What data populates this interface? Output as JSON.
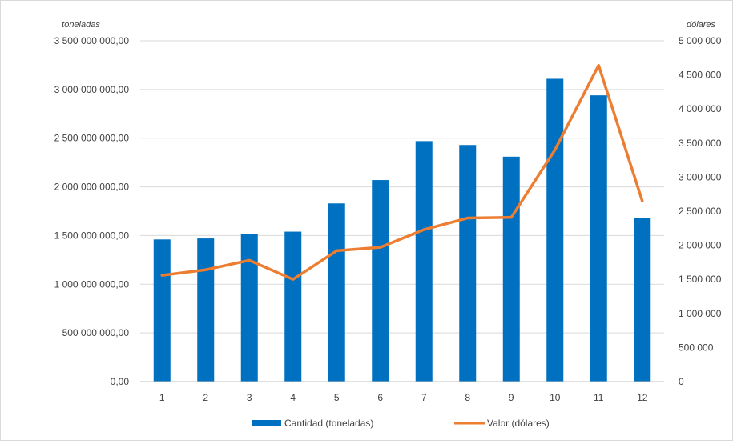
{
  "chart_data": {
    "type": "bar",
    "categories": [
      "1",
      "2",
      "3",
      "4",
      "5",
      "6",
      "7",
      "8",
      "9",
      "10",
      "11",
      "12"
    ],
    "series": [
      {
        "name": "Cantidad (toneladas)",
        "type": "bar",
        "axis": "left",
        "color": "#0070c0",
        "values": [
          1460000000,
          1470000000,
          1520000000,
          1540000000,
          1830000000,
          2070000000,
          2470000000,
          2430000000,
          2310000000,
          3110000000,
          2940000000,
          1680000000
        ]
      },
      {
        "name": "Valor (dólares)",
        "type": "line",
        "axis": "right",
        "color": "#ed7d31",
        "values": [
          1560000,
          1640000,
          1780000,
          1500000,
          1920000,
          1970000,
          2230000,
          2400000,
          2410000,
          3400000,
          4640000,
          2650000
        ]
      }
    ],
    "y_left": {
      "label": "toneladas",
      "ylim": [
        0,
        3500000000
      ],
      "ticks": [
        "0,00",
        "500 000 000,00",
        "1 000 000 000,00",
        "1 500 000 000,00",
        "2 000 000 000,00",
        "2 500 000 000,00",
        "3 000 000 000,00",
        "3 500 000 000,00"
      ]
    },
    "y_right": {
      "label": "dólares",
      "ylim": [
        0,
        5000000
      ],
      "ticks": [
        "0",
        "500 000",
        "1 000 000",
        "1 500 000",
        "2 000 000",
        "2 500 000",
        "3 000 000",
        "3 500 000",
        "4 000 000",
        "4 500 000",
        "5 000 000"
      ]
    },
    "grid": true,
    "legend_position": "bottom"
  }
}
